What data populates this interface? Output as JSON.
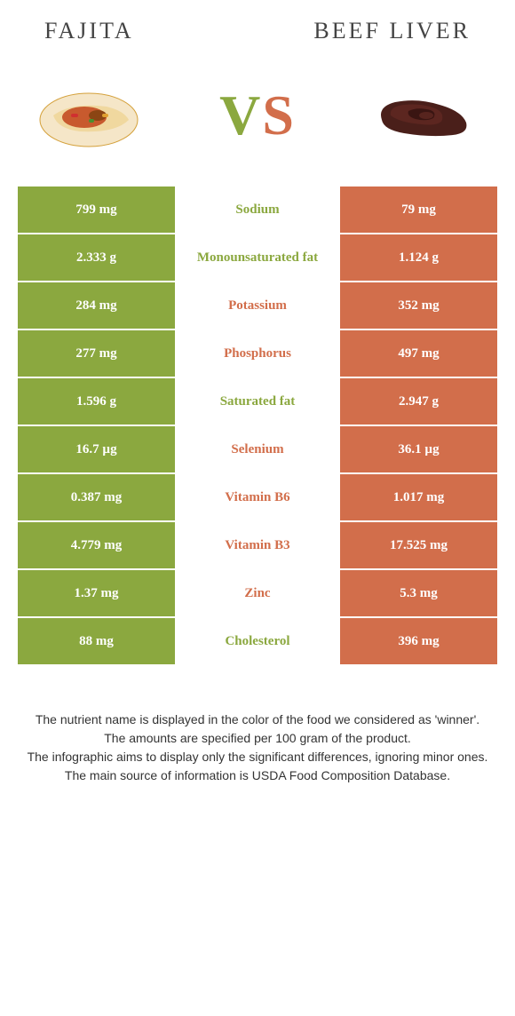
{
  "colors": {
    "left": "#8ba83f",
    "right": "#d26e4b",
    "leftText": "#8ba83f",
    "rightText": "#d26e4b"
  },
  "foods": {
    "left": {
      "name": "FAJITA"
    },
    "right": {
      "name": "BEEF LIVER"
    }
  },
  "vs": {
    "v": "V",
    "s": "S"
  },
  "rows": [
    {
      "left": "799 mg",
      "label": "Sodium",
      "right": "79 mg",
      "winner": "left"
    },
    {
      "left": "2.333 g",
      "label": "Monounsaturated fat",
      "right": "1.124 g",
      "winner": "left"
    },
    {
      "left": "284 mg",
      "label": "Potassium",
      "right": "352 mg",
      "winner": "right"
    },
    {
      "left": "277 mg",
      "label": "Phosphorus",
      "right": "497 mg",
      "winner": "right"
    },
    {
      "left": "1.596 g",
      "label": "Saturated fat",
      "right": "2.947 g",
      "winner": "left"
    },
    {
      "left": "16.7 µg",
      "label": "Selenium",
      "right": "36.1 µg",
      "winner": "right"
    },
    {
      "left": "0.387 mg",
      "label": "Vitamin B6",
      "right": "1.017 mg",
      "winner": "right"
    },
    {
      "left": "4.779 mg",
      "label": "Vitamin B3",
      "right": "17.525 mg",
      "winner": "right"
    },
    {
      "left": "1.37 mg",
      "label": "Zinc",
      "right": "5.3 mg",
      "winner": "right"
    },
    {
      "left": "88 mg",
      "label": "Cholesterol",
      "right": "396 mg",
      "winner": "left"
    }
  ],
  "footer": {
    "l1": "The nutrient name is displayed in the color of the food we considered as 'winner'.",
    "l2": "The amounts are specified per 100 gram of the product.",
    "l3": "The infographic aims to display only the significant differences, ignoring minor ones.",
    "l4": "The main source of information is USDA Food Composition Database."
  }
}
